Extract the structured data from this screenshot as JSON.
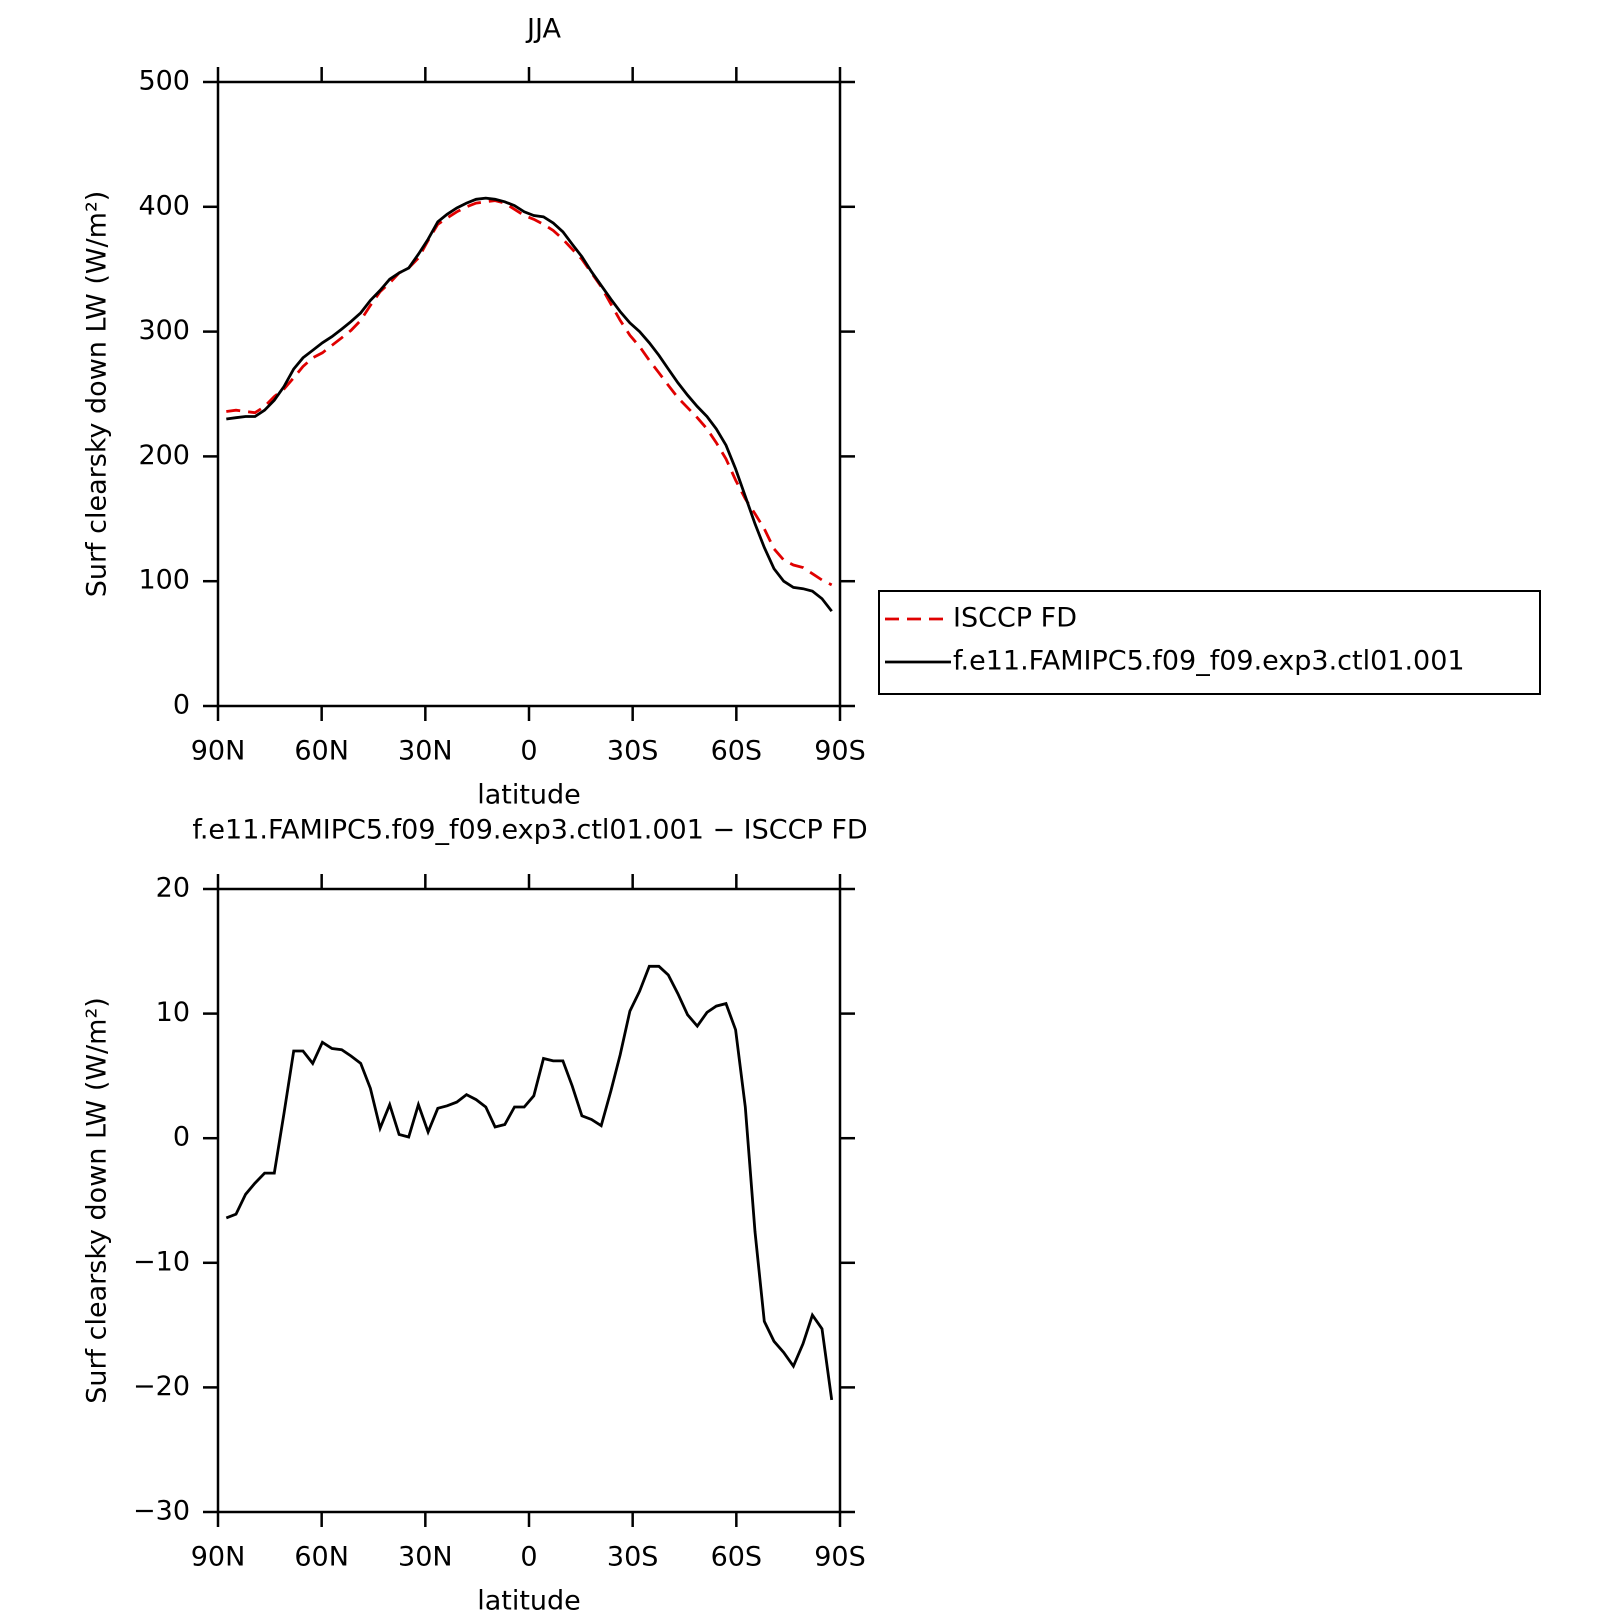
{
  "chart_data": [
    {
      "type": "line",
      "title": "JJA",
      "xlabel": "latitude",
      "ylabel": "Surf clearsky down LW (W/m²)",
      "xlim": [
        90,
        -90
      ],
      "ylim": [
        0,
        500
      ],
      "xticks": [
        {
          "value": 90,
          "label": "90N"
        },
        {
          "value": 60,
          "label": "60N"
        },
        {
          "value": 30,
          "label": "30N"
        },
        0,
        {
          "value": -30,
          "label": "30S"
        },
        {
          "value": -60,
          "label": "60S"
        },
        {
          "value": -90,
          "label": "90S"
        }
      ],
      "yticks": [
        0,
        100,
        200,
        300,
        400,
        500
      ],
      "legend": "right",
      "x": [
        87.6,
        84.8,
        82.0,
        79.3,
        76.5,
        73.7,
        70.9,
        68.1,
        65.4,
        62.6,
        59.8,
        57.0,
        54.2,
        51.5,
        48.7,
        45.9,
        43.1,
        40.3,
        37.6,
        34.8,
        32.0,
        29.2,
        26.4,
        23.7,
        20.9,
        18.1,
        15.3,
        12.5,
        9.8,
        7.0,
        4.2,
        1.4,
        -1.4,
        -4.2,
        -7.0,
        -9.8,
        -12.5,
        -15.3,
        -18.1,
        -20.9,
        -23.7,
        -26.4,
        -29.2,
        -32.0,
        -34.8,
        -37.6,
        -40.3,
        -43.1,
        -45.9,
        -48.7,
        -51.5,
        -54.2,
        -57.0,
        -59.8,
        -62.6,
        -65.4,
        -68.1,
        -70.9,
        -73.7,
        -76.5,
        -79.3,
        -82.0,
        -84.8,
        -87.6
      ],
      "series": [
        {
          "name": "ISCCP FD",
          "color": "#e00000",
          "dash": true,
          "values": [
            236,
            237,
            236,
            235,
            240,
            248,
            254,
            263,
            272,
            279,
            283,
            289,
            295,
            301,
            309,
            321,
            332,
            339,
            347,
            351,
            359,
            373,
            386,
            391,
            396,
            400,
            403,
            404,
            405,
            403,
            398,
            393,
            390,
            386,
            381,
            374,
            366,
            358,
            347,
            336,
            322,
            309,
            297,
            288,
            277,
            267,
            257,
            247,
            239,
            231,
            222,
            211,
            198,
            181,
            166,
            154,
            142,
            126,
            117,
            113,
            111,
            106,
            101,
            97
          ]
        },
        {
          "name": "f.e11.FAMIPC5.f09_f09.exp3.ctl01.001",
          "color": "#000000",
          "dash": false,
          "values": [
            230,
            231,
            232,
            232,
            237,
            245,
            256,
            270,
            279,
            285,
            291,
            296,
            302,
            308,
            315,
            325,
            333,
            342,
            347,
            351,
            362,
            374,
            388,
            394,
            399,
            403,
            406,
            407,
            406,
            404,
            401,
            396,
            393,
            392,
            387,
            380,
            370,
            360,
            348,
            337,
            326,
            316,
            307,
            300,
            291,
            281,
            270,
            259,
            249,
            240,
            232,
            222,
            209,
            190,
            168,
            146,
            127,
            110,
            100,
            95,
            94,
            92,
            86,
            76
          ]
        }
      ]
    },
    {
      "type": "line",
      "title": "f.e11.FAMIPC5.f09_f09.exp3.ctl01.001 − ISCCP FD",
      "xlabel": "latitude",
      "ylabel": "Surf clearsky down LW (W/m²)",
      "xlim": [
        90,
        -90
      ],
      "ylim": [
        -30,
        20
      ],
      "xticks": [
        {
          "value": 90,
          "label": "90N"
        },
        {
          "value": 60,
          "label": "60N"
        },
        {
          "value": 30,
          "label": "30N"
        },
        0,
        {
          "value": -30,
          "label": "30S"
        },
        {
          "value": -60,
          "label": "60S"
        },
        {
          "value": -90,
          "label": "90S"
        }
      ],
      "yticks": [
        {
          "value": -30,
          "label": "−30"
        },
        {
          "value": -20,
          "label": "−20"
        },
        {
          "value": -10,
          "label": "−10"
        },
        0,
        10,
        20
      ],
      "x": [
        87.6,
        84.8,
        82.0,
        79.3,
        76.5,
        73.7,
        70.9,
        68.1,
        65.4,
        62.6,
        59.8,
        57.0,
        54.2,
        51.5,
        48.7,
        45.9,
        43.1,
        40.3,
        37.6,
        34.8,
        32.0,
        29.2,
        26.4,
        23.7,
        20.9,
        18.1,
        15.3,
        12.5,
        9.8,
        7.0,
        4.2,
        1.4,
        -1.4,
        -4.2,
        -7.0,
        -9.8,
        -12.5,
        -15.3,
        -18.1,
        -20.9,
        -23.7,
        -26.4,
        -29.2,
        -32.0,
        -34.8,
        -37.6,
        -40.3,
        -43.1,
        -45.9,
        -48.7,
        -51.5,
        -54.2,
        -57.0,
        -59.8,
        -62.6,
        -65.4,
        -68.1,
        -70.9,
        -73.7,
        -76.5,
        -79.3,
        -82.0,
        -84.8,
        -87.6
      ],
      "series": [
        {
          "color": "#000000",
          "dash": false,
          "values": [
            -6.4,
            -6.1,
            -4.5,
            -3.6,
            -2.8,
            -2.8,
            2.0,
            7.0,
            7.0,
            6.0,
            7.7,
            7.2,
            7.1,
            6.6,
            6.0,
            4.0,
            0.8,
            2.7,
            0.3,
            0.1,
            2.7,
            0.5,
            2.4,
            2.6,
            2.9,
            3.5,
            3.1,
            2.5,
            0.9,
            1.1,
            2.5,
            2.5,
            3.4,
            6.4,
            6.2,
            6.2,
            4.2,
            1.8,
            1.5,
            1.0,
            3.8,
            6.7,
            10.2,
            11.8,
            13.8,
            13.8,
            13.1,
            11.6,
            9.9,
            9.0,
            10.1,
            10.6,
            10.8,
            8.7,
            2.5,
            -7.5,
            -14.7,
            -16.3,
            -17.2,
            -18.3,
            -16.5,
            -14.2,
            -15.3,
            -21.0
          ]
        }
      ]
    }
  ]
}
